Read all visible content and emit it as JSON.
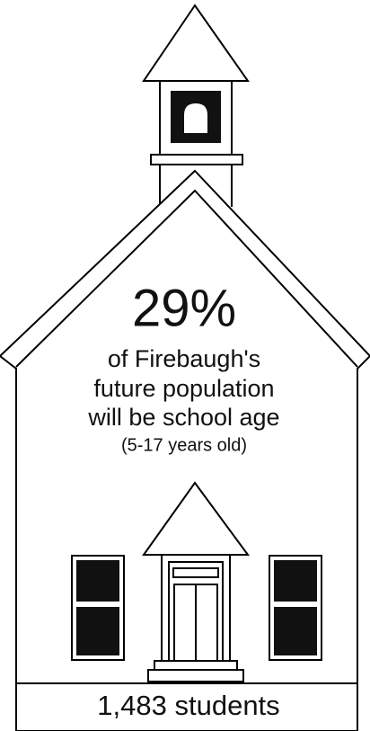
{
  "headline": {
    "value": "29%",
    "lines": [
      "of Firebaugh's",
      "future population",
      "will be school age"
    ],
    "note": "(5-17 years old)"
  },
  "footer": "1,483 students"
}
